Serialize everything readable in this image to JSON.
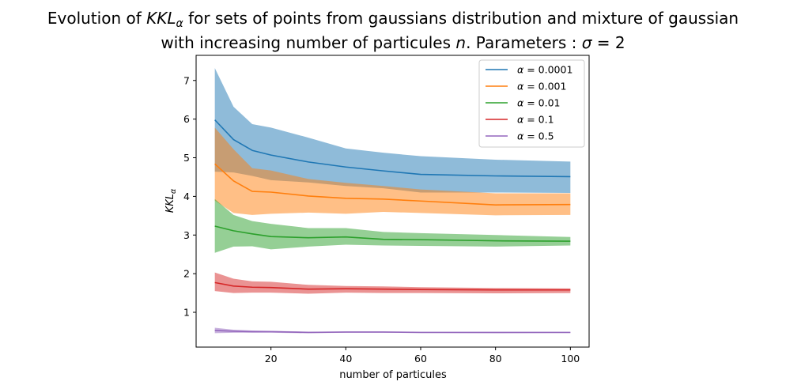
{
  "chart_data": {
    "type": "line",
    "title_line1_prefix": "Evolution of ",
    "title_line1_math": "KKL",
    "title_line1_sub": "α",
    "title_line1_suffix": " for sets of points from gaussians distribution and mixture of gaussian",
    "title_line2_prefix": "with increasing number of particules ",
    "title_line2_math": "n",
    "title_line2_middle": ". Parameters : ",
    "title_line2_sigma": "σ",
    "title_line2_value": " =  2",
    "xlabel": "number of particules",
    "ylabel_main": "KKL",
    "ylabel_sub": "α",
    "x": [
      5,
      10,
      15,
      20,
      30,
      40,
      50,
      60,
      80,
      100
    ],
    "xlim": [
      0,
      105
    ],
    "ylim": [
      0.1,
      7.65
    ],
    "xticks": [
      "20",
      "40",
      "60",
      "80",
      "100"
    ],
    "yticks": [
      "1",
      "2",
      "3",
      "4",
      "5",
      "6",
      "7"
    ],
    "legend_position": "top-right",
    "series": [
      {
        "name": "α =  0.0001",
        "legend_alpha": "α",
        "legend_value": " =  0.0001",
        "color": "#1f77b4",
        "values": [
          5.98,
          5.47,
          5.19,
          5.07,
          4.89,
          4.76,
          4.66,
          4.57,
          4.53,
          4.51
        ],
        "lower": [
          4.64,
          4.62,
          4.53,
          4.42,
          4.36,
          4.27,
          4.21,
          4.1,
          4.1,
          4.09
        ],
        "upper": [
          7.32,
          6.32,
          5.87,
          5.78,
          5.52,
          5.24,
          5.13,
          5.04,
          4.95,
          4.9
        ]
      },
      {
        "name": "α =  0.001",
        "legend_alpha": "α",
        "legend_value": " =  0.001",
        "color": "#ff7f0e",
        "values": [
          4.84,
          4.4,
          4.13,
          4.11,
          4.01,
          3.95,
          3.93,
          3.88,
          3.78,
          3.79
        ],
        "lower": [
          3.89,
          3.57,
          3.52,
          3.55,
          3.58,
          3.55,
          3.6,
          3.57,
          3.51,
          3.52
        ],
        "upper": [
          5.78,
          5.22,
          4.73,
          4.67,
          4.45,
          4.35,
          4.27,
          4.18,
          4.08,
          4.08
        ]
      },
      {
        "name": "α =  0.01",
        "legend_alpha": "α",
        "legend_value": " =  0.01",
        "color": "#2ca02c",
        "values": [
          3.23,
          3.11,
          3.03,
          2.96,
          2.93,
          2.95,
          2.89,
          2.88,
          2.85,
          2.84
        ],
        "lower": [
          2.54,
          2.7,
          2.71,
          2.63,
          2.7,
          2.75,
          2.73,
          2.72,
          2.7,
          2.73
        ],
        "upper": [
          3.93,
          3.52,
          3.36,
          3.29,
          3.18,
          3.18,
          3.08,
          3.05,
          3.0,
          2.95
        ]
      },
      {
        "name": "α =  0.1",
        "legend_alpha": "α",
        "legend_value": " =  0.1",
        "color": "#d62728",
        "values": [
          1.77,
          1.68,
          1.65,
          1.64,
          1.6,
          1.61,
          1.6,
          1.59,
          1.58,
          1.58
        ],
        "lower": [
          1.55,
          1.5,
          1.51,
          1.51,
          1.48,
          1.51,
          1.5,
          1.5,
          1.49,
          1.5
        ],
        "upper": [
          2.03,
          1.87,
          1.8,
          1.79,
          1.71,
          1.68,
          1.67,
          1.65,
          1.63,
          1.62
        ]
      },
      {
        "name": "α =  0.5",
        "legend_alpha": "α",
        "legend_value": " =  0.5",
        "color": "#9467bd",
        "values": [
          0.53,
          0.51,
          0.5,
          0.5,
          0.48,
          0.49,
          0.49,
          0.48,
          0.48,
          0.48
        ],
        "lower": [
          0.46,
          0.47,
          0.47,
          0.47,
          0.46,
          0.47,
          0.47,
          0.47,
          0.46,
          0.47
        ],
        "upper": [
          0.6,
          0.55,
          0.53,
          0.52,
          0.5,
          0.5,
          0.5,
          0.49,
          0.49,
          0.49
        ]
      }
    ]
  }
}
